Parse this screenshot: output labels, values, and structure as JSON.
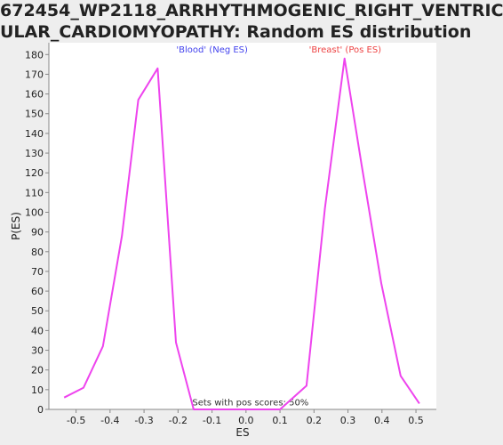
{
  "title_line1": "672454_WP2118_ARRHYTHMOGENIC_RIGHT_VENTRIC",
  "title_line2": "ULAR_CARDIOMYOPATHY: Random ES distribution",
  "colors": {
    "line": "#ee44ee",
    "neg_label": "#4444ee",
    "pos_label": "#ee4444",
    "axis": "#888888",
    "plot_bg": "#ffffff",
    "page_bg": "#eeeeee"
  },
  "chart_data": {
    "type": "line",
    "title": "672454_WP2118_ARRHYTHMOGENIC_RIGHT_VENTRICULAR_CARDIOMYOPATHY: Random ES distribution",
    "xlabel": "ES",
    "ylabel": "P(ES)",
    "xlim": [
      -0.58,
      0.56
    ],
    "ylim": [
      0,
      186
    ],
    "xticks": [
      -0.5,
      -0.4,
      -0.3,
      -0.2,
      -0.1,
      0.0,
      0.1,
      0.2,
      0.3,
      0.4,
      0.5
    ],
    "xtick_labels": [
      "-0.5",
      "-0.4",
      "-0.3",
      "-0.2",
      "-0.1",
      "0.0",
      "0.1",
      "0.2",
      "0.3",
      "0.4",
      "0.5"
    ],
    "yticks": [
      0,
      10,
      20,
      30,
      40,
      50,
      60,
      70,
      80,
      90,
      100,
      110,
      120,
      130,
      140,
      150,
      160,
      170,
      180
    ],
    "grid": false,
    "series": [
      {
        "name": "",
        "color": "#ee44ee",
        "x": [
          -0.535,
          -0.478,
          -0.421,
          -0.365,
          -0.317,
          -0.26,
          -0.206,
          -0.154,
          -0.097,
          0.1,
          0.178,
          0.232,
          0.29,
          0.34,
          0.398,
          0.455,
          0.51
        ],
        "y": [
          6,
          11,
          32,
          88,
          157,
          173,
          34,
          0,
          0,
          0,
          12,
          102,
          178,
          124,
          64,
          17,
          3
        ]
      }
    ],
    "annotations": [
      {
        "text": "'Blood' (Neg ES)",
        "x": -0.205,
        "y": 181,
        "color": "#4444ee"
      },
      {
        "text": "'Breast' (Pos ES)",
        "x": 0.185,
        "y": 181,
        "color": "#ee4444"
      },
      {
        "text": "Sets with pos scores: 50%",
        "x": -0.158,
        "y": 2,
        "color": "#333333"
      }
    ]
  }
}
